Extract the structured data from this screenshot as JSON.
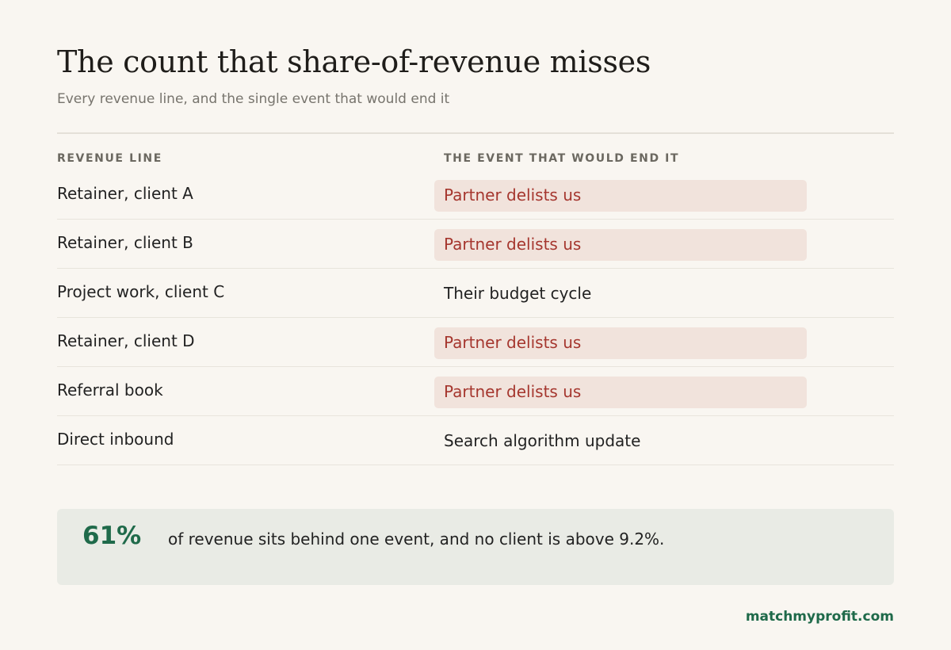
{
  "title": "The count that share-of-revenue misses",
  "subtitle": "Every revenue line, and the single event that would end it",
  "columns": {
    "line": "REVENUE LINE",
    "event": "THE EVENT THAT WOULD END IT"
  },
  "rows": [
    {
      "line": "Retainer, client A",
      "event": "Partner delists us",
      "highlighted": true
    },
    {
      "line": "Retainer, client B",
      "event": "Partner delists us",
      "highlighted": true
    },
    {
      "line": "Project work, client C",
      "event": "Their budget cycle",
      "highlighted": false
    },
    {
      "line": "Retainer, client D",
      "event": "Partner delists us",
      "highlighted": true
    },
    {
      "line": "Referral book",
      "event": "Partner delists us",
      "highlighted": true
    },
    {
      "line": "Direct inbound",
      "event": "Search algorithm update",
      "highlighted": false
    }
  ],
  "callout": {
    "stat": "61%",
    "text": "of revenue sits behind one event, and no client is above 9.2%."
  },
  "brand": "matchmyprofit.com",
  "colors": {
    "background": "#f9f6f1",
    "highlight_bg": "#f1e3dc",
    "highlight_text": "#a5362e",
    "accent_green": "#1f6a4a",
    "callout_bg": "#e9ebe5"
  }
}
